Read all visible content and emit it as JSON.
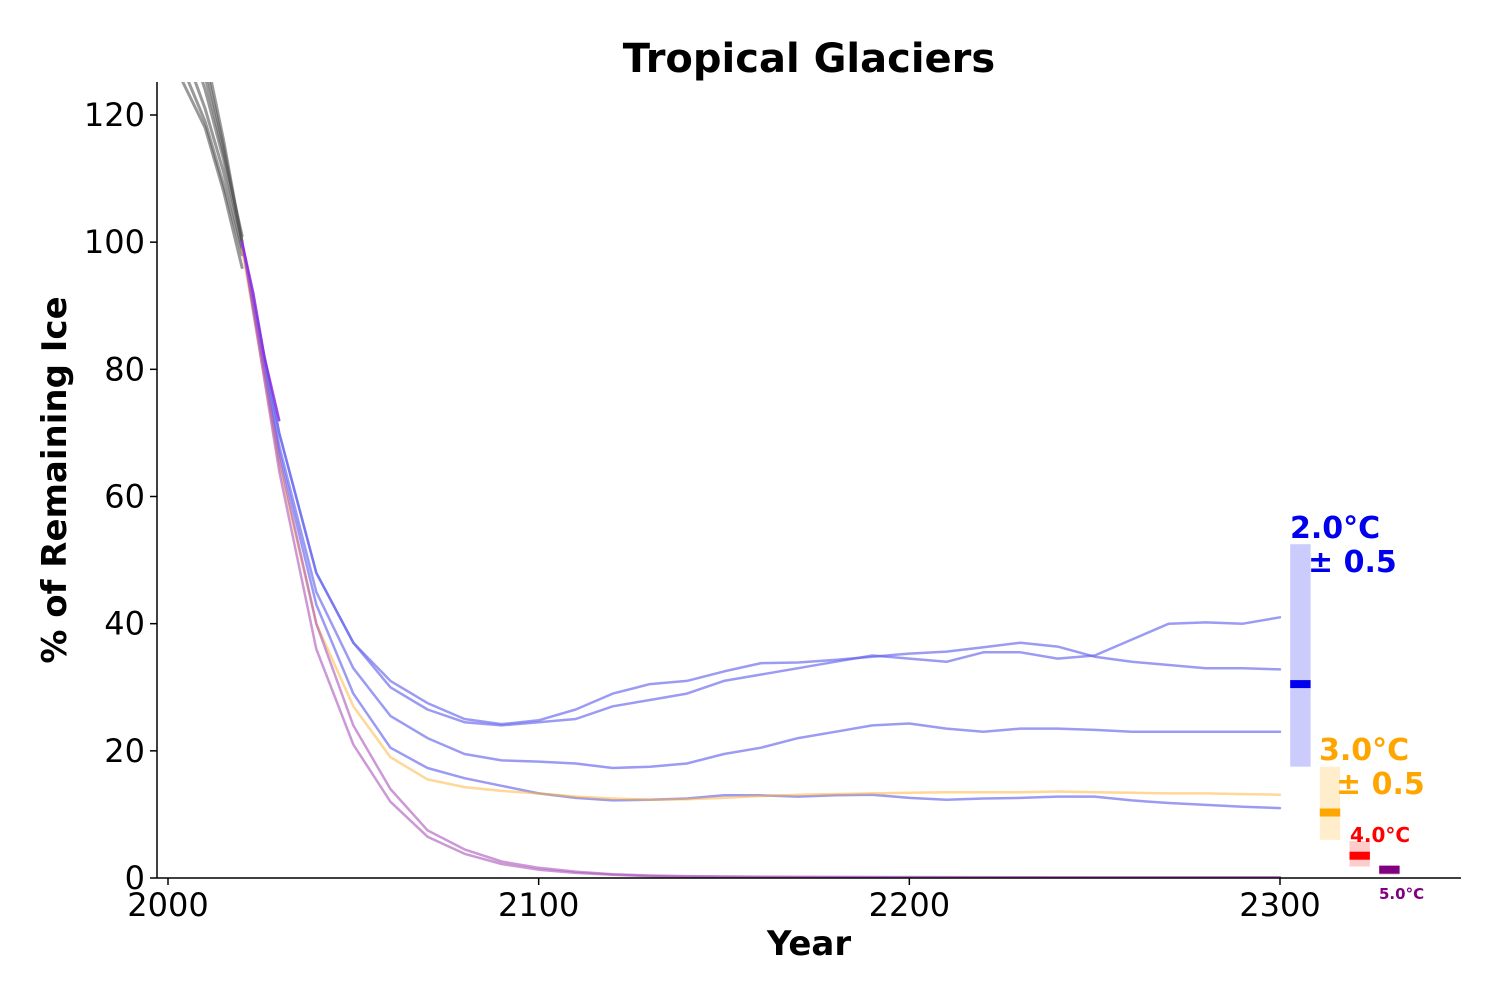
{
  "chart_data": {
    "type": "line",
    "title": "Tropical Glaciers",
    "xlabel": "Year",
    "ylabel": "% of Remaining Ice",
    "xlim": [
      1997,
      2330
    ],
    "ylim": [
      0,
      125
    ],
    "xticks": [
      "2000",
      "2100",
      "2200",
      "2300"
    ],
    "yticks": [
      "0",
      "20",
      "40",
      "60",
      "80",
      "100",
      "120"
    ],
    "grid": false,
    "historical_color": "#555555",
    "historical": [
      {
        "x": [
          2000,
          2005,
          2010,
          2015,
          2020
        ],
        "y": [
          130,
          124,
          118,
          108,
          96
        ]
      },
      {
        "x": [
          2000,
          2005,
          2010,
          2015,
          2020
        ],
        "y": [
          136,
          129,
          121,
          111,
          99
        ]
      },
      {
        "x": [
          2000,
          2005,
          2010,
          2015,
          2020
        ],
        "y": [
          140,
          133,
          124,
          113,
          100
        ]
      },
      {
        "x": [
          2000,
          2005,
          2010,
          2015,
          2020
        ],
        "y": [
          144,
          136,
          126,
          114,
          101
        ]
      },
      {
        "x": [
          2000,
          2005,
          2010,
          2015,
          2020
        ],
        "y": [
          148,
          139,
          128,
          115,
          100
        ]
      },
      {
        "x": [
          2000,
          2005,
          2010,
          2015,
          2020
        ],
        "y": [
          152,
          142,
          130,
          116,
          100
        ]
      },
      {
        "x": [
          2000,
          2005,
          2010,
          2015,
          2020
        ],
        "y": [
          133,
          126,
          119,
          109,
          98
        ]
      }
    ],
    "series": [
      {
        "color": "#6666ee",
        "opacity": 0.65,
        "x": [
          2020,
          2030,
          2040,
          2050,
          2060,
          2070,
          2080,
          2090,
          2100,
          2110,
          2120,
          2130,
          2140,
          2150,
          2160,
          2170,
          2180,
          2190,
          2200,
          2210,
          2220,
          2230,
          2240,
          2250,
          2260,
          2270,
          2280,
          2290,
          2300
        ],
        "y": [
          100,
          70,
          48,
          37,
          31,
          27.5,
          25,
          24.2,
          24.8,
          26.5,
          29,
          30.5,
          31,
          32.5,
          33.8,
          33.9,
          34.3,
          34.8,
          35.3,
          35.6,
          36.3,
          37,
          36.4,
          34.8,
          34,
          33.5,
          33,
          33,
          32.8
        ]
      },
      {
        "color": "#6666ee",
        "opacity": 0.65,
        "x": [
          2020,
          2030,
          2040,
          2050,
          2060,
          2070,
          2080,
          2090,
          2100,
          2110,
          2120,
          2130,
          2140,
          2150,
          2160,
          2170,
          2180,
          2190,
          2200,
          2210,
          2220,
          2230,
          2240,
          2250,
          2260,
          2270,
          2280,
          2290,
          2300
        ],
        "y": [
          100,
          70,
          48,
          37,
          30,
          26.5,
          24.5,
          24,
          24.5,
          25,
          27,
          28,
          29,
          31,
          32,
          33,
          34,
          35,
          34.5,
          34,
          35.5,
          35.5,
          34.5,
          35,
          37.5,
          40,
          40.2,
          40,
          41
        ]
      },
      {
        "color": "#6666ee",
        "opacity": 0.65,
        "x": [
          2020,
          2030,
          2040,
          2050,
          2060,
          2070,
          2080,
          2090,
          2100,
          2110,
          2120,
          2130,
          2140,
          2150,
          2160,
          2170,
          2180,
          2190,
          2200,
          2210,
          2220,
          2230,
          2240,
          2250,
          2260,
          2270,
          2280,
          2290,
          2300
        ],
        "y": [
          100,
          68,
          45,
          33,
          25.5,
          22,
          19.5,
          18.5,
          18.3,
          18,
          17.3,
          17.5,
          18,
          19.5,
          20.5,
          22,
          23,
          24,
          24.3,
          23.5,
          23,
          23.5,
          23.5,
          23.3,
          23,
          23,
          23,
          23,
          23
        ]
      },
      {
        "color": "#6666ee",
        "opacity": 0.65,
        "x": [
          2020,
          2030,
          2040,
          2050,
          2060,
          2070,
          2080,
          2090,
          2100,
          2110,
          2120,
          2130,
          2140,
          2150,
          2160,
          2170,
          2180,
          2190,
          2200,
          2210,
          2220,
          2230,
          2240,
          2250,
          2260,
          2270,
          2280,
          2290,
          2300
        ],
        "y": [
          100,
          67,
          43,
          29,
          20.5,
          17.3,
          15.7,
          14.5,
          13.3,
          12.6,
          12.2,
          12.3,
          12.5,
          13,
          13,
          12.8,
          13,
          13.1,
          12.6,
          12.3,
          12.5,
          12.6,
          12.8,
          12.8,
          12.2,
          11.8,
          11.5,
          11.2,
          11
        ]
      },
      {
        "color": "#ffb030",
        "opacity": 0.5,
        "x": [
          2020,
          2030,
          2040,
          2050,
          2060,
          2070,
          2080,
          2090,
          2100,
          2110,
          2120,
          2130,
          2140,
          2150,
          2160,
          2170,
          2180,
          2190,
          2200,
          2210,
          2220,
          2230,
          2240,
          2250,
          2260,
          2270,
          2280,
          2290,
          2300
        ],
        "y": [
          99,
          65,
          40,
          27,
          19,
          15.5,
          14.3,
          13.7,
          13.3,
          12.8,
          12.5,
          12.3,
          12.4,
          12.6,
          12.9,
          13.1,
          13.2,
          13.3,
          13.4,
          13.5,
          13.5,
          13.5,
          13.6,
          13.5,
          13.4,
          13.3,
          13.3,
          13.2,
          13.1
        ]
      },
      {
        "color": "#aa55bb",
        "opacity": 0.6,
        "x": [
          2020,
          2030,
          2040,
          2050,
          2060,
          2070,
          2080,
          2090,
          2100,
          2110,
          2120,
          2130,
          2140,
          2160,
          2200,
          2250,
          2300
        ],
        "y": [
          100,
          66,
          40,
          24,
          14,
          7.5,
          4.5,
          2.6,
          1.6,
          1.0,
          0.6,
          0.4,
          0.3,
          0.2,
          0.15,
          0.1,
          0.1
        ]
      },
      {
        "color": "#aa55bb",
        "opacity": 0.6,
        "x": [
          2020,
          2030,
          2040,
          2050,
          2060,
          2070,
          2080,
          2090,
          2100,
          2110,
          2120,
          2130,
          2140,
          2160,
          2200,
          2250,
          2300
        ],
        "y": [
          100,
          64,
          36,
          21,
          12,
          6.5,
          3.8,
          2.2,
          1.3,
          0.8,
          0.5,
          0.3,
          0.2,
          0.15,
          0.1,
          0.1,
          0.1
        ]
      },
      {
        "color": "#8a2be2",
        "opacity": 0.85,
        "x": [
          2020,
          2023,
          2026,
          2030
        ],
        "y": [
          100,
          92,
          82,
          72
        ]
      }
    ],
    "ranges": [
      {
        "color": "#0000ee",
        "x": 2305.5,
        "width": 5.5,
        "low": 17.5,
        "high": 52.5,
        "median": 30.5
      },
      {
        "color": "#ffa500",
        "x": 2313.5,
        "width": 5.5,
        "low": 6,
        "high": 17.5,
        "median": 10.3
      },
      {
        "color": "#ff0000",
        "x": 2321.5,
        "width": 5.5,
        "low": 1.8,
        "high": 5.8,
        "median": 3.5
      },
      {
        "color": "#800080",
        "x": 2329.5,
        "width": 5.5,
        "low": 0.5,
        "high": 2.0,
        "median": 1.3
      }
    ],
    "annotations": [
      {
        "line1": "2.0°C",
        "line2": "± 0.5",
        "color": "#0000ee"
      },
      {
        "line1": "3.0°C",
        "line2": "± 0.5",
        "color": "#ffa500"
      },
      {
        "line1": "4.0°C",
        "line2": "",
        "color": "#ff0000"
      },
      {
        "line1": "5.0°C",
        "line2": "",
        "color": "#800080"
      }
    ]
  }
}
